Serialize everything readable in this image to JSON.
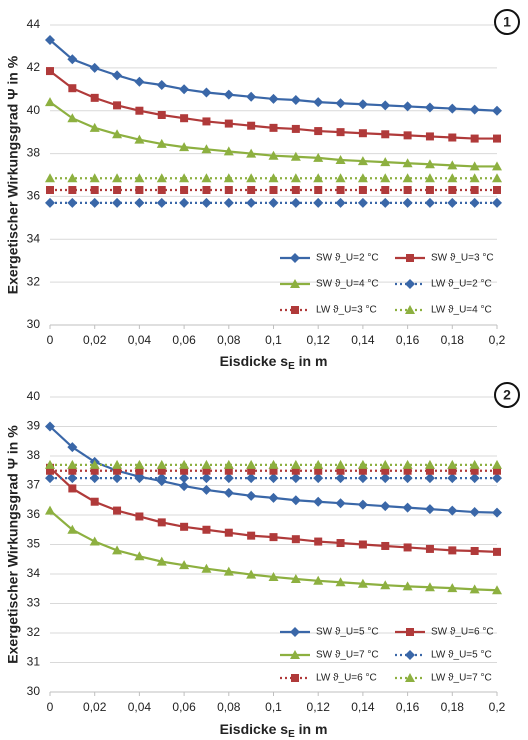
{
  "chart_data": [
    {
      "type": "line",
      "badge": "1",
      "y_label": "Exergetischer Wirkungsgrad Ψ in %",
      "x_label": {
        "main": "Eisdicke s",
        "sub": "E",
        "unit": " in m"
      },
      "x": [
        0,
        0.01,
        0.02,
        0.03,
        0.04,
        0.05,
        0.06,
        0.07,
        0.08,
        0.09,
        0.1,
        0.11,
        0.12,
        0.13,
        0.14,
        0.15,
        0.16,
        0.17,
        0.18,
        0.19,
        0.2
      ],
      "xlim": [
        0,
        0.2
      ],
      "xticks": [
        0,
        {
          "value": 0.02,
          "label": "0,02"
        },
        {
          "value": 0.04,
          "label": "0,04"
        },
        {
          "value": 0.06,
          "label": "0,06"
        },
        {
          "value": 0.08,
          "label": "0,08"
        },
        {
          "value": 0.1,
          "label": "0,1"
        },
        {
          "value": 0.12,
          "label": "0,12"
        },
        {
          "value": 0.14,
          "label": "0,14"
        },
        {
          "value": 0.16,
          "label": "0,16"
        },
        {
          "value": 0.18,
          "label": "0,18"
        },
        {
          "value": 0.2,
          "label": "0,2"
        }
      ],
      "ylim": [
        30,
        44
      ],
      "yticks": [
        30,
        32,
        34,
        36,
        38,
        40,
        42,
        44
      ],
      "grid": true,
      "series": [
        {
          "name": "SW ϑ_U=2 °C",
          "color": "#3a67a8",
          "marker": "diamond",
          "linestyle": "solid",
          "values": [
            43.3,
            42.4,
            42.0,
            41.65,
            41.35,
            41.2,
            41.0,
            40.85,
            40.75,
            40.65,
            40.55,
            40.5,
            40.4,
            40.35,
            40.3,
            40.25,
            40.2,
            40.15,
            40.1,
            40.05,
            40.0
          ]
        },
        {
          "name": "SW ϑ_U=3 °C",
          "color": "#b03a3a",
          "marker": "square",
          "linestyle": "solid",
          "values": [
            41.85,
            41.05,
            40.6,
            40.25,
            40.0,
            39.8,
            39.65,
            39.5,
            39.4,
            39.3,
            39.2,
            39.15,
            39.05,
            39.0,
            38.95,
            38.9,
            38.85,
            38.8,
            38.75,
            38.7,
            38.7
          ]
        },
        {
          "name": "SW ϑ_U=4 °C",
          "color": "#8db040",
          "marker": "triangle",
          "linestyle": "solid",
          "values": [
            40.4,
            39.65,
            39.2,
            38.9,
            38.65,
            38.45,
            38.3,
            38.2,
            38.1,
            38.0,
            37.9,
            37.85,
            37.8,
            37.7,
            37.65,
            37.6,
            37.55,
            37.5,
            37.45,
            37.4,
            37.4
          ]
        },
        {
          "name": "LW ϑ_U=2 °C",
          "color": "#3a67a8",
          "marker": "diamond",
          "linestyle": "dotted",
          "values": [
            35.7,
            35.7,
            35.7,
            35.7,
            35.7,
            35.7,
            35.7,
            35.7,
            35.7,
            35.7,
            35.7,
            35.7,
            35.7,
            35.7,
            35.7,
            35.7,
            35.7,
            35.7,
            35.7,
            35.7,
            35.7
          ]
        },
        {
          "name": "LW ϑ_U=3 °C",
          "color": "#b03a3a",
          "marker": "square",
          "linestyle": "dotted",
          "values": [
            36.3,
            36.3,
            36.3,
            36.3,
            36.3,
            36.3,
            36.3,
            36.3,
            36.3,
            36.3,
            36.3,
            36.3,
            36.3,
            36.3,
            36.3,
            36.3,
            36.3,
            36.3,
            36.3,
            36.3,
            36.3
          ]
        },
        {
          "name": "LW ϑ_U=4 °C",
          "color": "#8db040",
          "marker": "triangle",
          "linestyle": "dotted",
          "values": [
            36.85,
            36.85,
            36.85,
            36.85,
            36.85,
            36.85,
            36.85,
            36.85,
            36.85,
            36.85,
            36.85,
            36.85,
            36.85,
            36.85,
            36.85,
            36.85,
            36.85,
            36.85,
            36.85,
            36.85,
            36.85
          ]
        }
      ]
    },
    {
      "type": "line",
      "badge": "2",
      "y_label": "Exergetischer Wirkungsgrad Ψ in %",
      "x_label": {
        "main": "Eisdicke s",
        "sub": "E",
        "unit": " in m"
      },
      "x": [
        0,
        0.01,
        0.02,
        0.03,
        0.04,
        0.05,
        0.06,
        0.07,
        0.08,
        0.09,
        0.1,
        0.11,
        0.12,
        0.13,
        0.14,
        0.15,
        0.16,
        0.17,
        0.18,
        0.19,
        0.2
      ],
      "xlim": [
        0,
        0.2
      ],
      "xticks": [
        0,
        {
          "value": 0.02,
          "label": "0,02"
        },
        {
          "value": 0.04,
          "label": "0,04"
        },
        {
          "value": 0.06,
          "label": "0,06"
        },
        {
          "value": 0.08,
          "label": "0,08"
        },
        {
          "value": 0.1,
          "label": "0,1"
        },
        {
          "value": 0.12,
          "label": "0,12"
        },
        {
          "value": 0.14,
          "label": "0,14"
        },
        {
          "value": 0.16,
          "label": "0,16"
        },
        {
          "value": 0.18,
          "label": "0,18"
        },
        {
          "value": 0.2,
          "label": "0,2"
        }
      ],
      "ylim": [
        30,
        40
      ],
      "yticks": [
        30,
        31,
        32,
        33,
        34,
        35,
        36,
        37,
        38,
        39,
        40
      ],
      "grid": true,
      "series": [
        {
          "name": "SW ϑ_U=5 °C",
          "color": "#3a67a8",
          "marker": "diamond",
          "linestyle": "solid",
          "values": [
            39.0,
            38.3,
            37.8,
            37.5,
            37.3,
            37.15,
            36.98,
            36.85,
            36.75,
            36.65,
            36.58,
            36.5,
            36.45,
            36.4,
            36.35,
            36.3,
            36.25,
            36.2,
            36.15,
            36.1,
            36.08
          ]
        },
        {
          "name": "SW ϑ_U=6 °C",
          "color": "#b03a3a",
          "marker": "square",
          "linestyle": "solid",
          "values": [
            37.6,
            36.9,
            36.45,
            36.15,
            35.95,
            35.75,
            35.6,
            35.5,
            35.4,
            35.3,
            35.25,
            35.18,
            35.1,
            35.05,
            35.0,
            34.95,
            34.9,
            34.85,
            34.8,
            34.78,
            34.75
          ]
        },
        {
          "name": "SW ϑ_U=7 °C",
          "color": "#8db040",
          "marker": "triangle",
          "linestyle": "solid",
          "values": [
            36.15,
            35.5,
            35.1,
            34.8,
            34.6,
            34.42,
            34.3,
            34.18,
            34.08,
            33.98,
            33.9,
            33.83,
            33.77,
            33.72,
            33.67,
            33.62,
            33.58,
            33.55,
            33.52,
            33.48,
            33.45
          ]
        },
        {
          "name": "LW ϑ_U=5 °C",
          "color": "#3a67a8",
          "marker": "diamond",
          "linestyle": "dotted",
          "values": [
            37.25,
            37.25,
            37.25,
            37.25,
            37.25,
            37.25,
            37.25,
            37.25,
            37.25,
            37.25,
            37.25,
            37.25,
            37.25,
            37.25,
            37.25,
            37.25,
            37.25,
            37.25,
            37.25,
            37.25,
            37.25
          ]
        },
        {
          "name": "LW ϑ_U=6 °C",
          "color": "#b03a3a",
          "marker": "square",
          "linestyle": "dotted",
          "values": [
            37.5,
            37.5,
            37.5,
            37.5,
            37.5,
            37.5,
            37.5,
            37.5,
            37.5,
            37.5,
            37.5,
            37.5,
            37.5,
            37.5,
            37.5,
            37.5,
            37.5,
            37.5,
            37.5,
            37.5,
            37.5
          ]
        },
        {
          "name": "LW ϑ_U=7 °C",
          "color": "#8db040",
          "marker": "triangle",
          "linestyle": "dotted",
          "values": [
            37.7,
            37.7,
            37.7,
            37.7,
            37.7,
            37.7,
            37.7,
            37.7,
            37.7,
            37.7,
            37.7,
            37.7,
            37.7,
            37.7,
            37.7,
            37.7,
            37.7,
            37.7,
            37.7,
            37.7,
            37.7
          ]
        }
      ]
    }
  ]
}
